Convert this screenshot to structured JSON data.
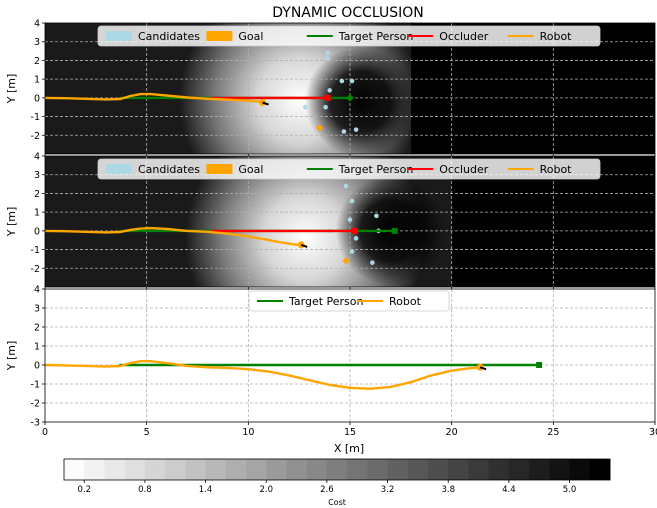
{
  "figure": {
    "title": "DYNAMIC OCCLUSION",
    "xlabel": "X [m]",
    "ylabel": "Y [m]"
  },
  "colorbar": {
    "label": "Cost",
    "ticks": [
      0.2,
      0.8,
      1.4,
      2.0,
      2.6,
      3.2,
      3.8,
      4.4,
      5.0
    ],
    "tick_labels": [
      "0.2",
      "0.8",
      "1.4",
      "2.0",
      "2.6",
      "3.2",
      "3.8",
      "4.4",
      "5.0"
    ],
    "range": [
      0,
      5.4
    ]
  },
  "colors": {
    "candidates": "#add8e6",
    "goal": "#ffa500",
    "target": "#008000",
    "occluder": "#ff0000",
    "robot": "#ffa500"
  },
  "chart_data": [
    {
      "type": "line",
      "panel": "top",
      "xlim": [
        0,
        30
      ],
      "ylim": [
        -3,
        4
      ],
      "yticks": [
        -2,
        -1,
        0,
        1,
        2,
        3,
        4
      ],
      "grid": true,
      "legend": {
        "placement": "top",
        "entries": [
          {
            "label": "Candidates",
            "kind": "patch",
            "color": "#add8e6"
          },
          {
            "label": "Goal",
            "kind": "patch",
            "color": "#ffa500"
          },
          {
            "label": "Target Person",
            "kind": "line",
            "color": "#008000"
          },
          {
            "label": "Occluder",
            "kind": "line",
            "color": "#ff0000"
          },
          {
            "label": "Robot",
            "kind": "line",
            "color": "#ffa500"
          }
        ]
      },
      "cost_map": {
        "low_center": [
          12.5,
          -0.1
        ],
        "high_center": [
          15.5,
          -0.2
        ],
        "dark_from_x": 18
      },
      "series": [
        {
          "name": "Target Person",
          "color": "#008000",
          "x": [
            3.7,
            15.0
          ],
          "y": [
            0.0,
            0.0
          ],
          "end_marker": "diamond"
        },
        {
          "name": "Occluder",
          "color": "#ff0000",
          "x": [
            8.2,
            13.9
          ],
          "y": [
            0.0,
            0.0
          ],
          "end_marker": "square"
        },
        {
          "name": "Robot",
          "color": "#ffa500",
          "x": [
            0,
            1,
            2,
            3,
            3.7,
            4.2,
            4.7,
            5.2,
            6,
            7,
            8,
            9,
            10,
            10.5,
            10.7
          ],
          "y": [
            0,
            -0.02,
            -0.05,
            -0.08,
            -0.06,
            0.1,
            0.2,
            0.2,
            0.12,
            0.02,
            -0.05,
            -0.1,
            -0.15,
            -0.2,
            -0.25
          ]
        }
      ],
      "goal": {
        "x": 13.5,
        "y": -1.6
      },
      "candidates": {
        "x": [
          13.9,
          13.9,
          14.6,
          15.1,
          14.0,
          12.8,
          13.8,
          14.7,
          15.3
        ],
        "y": [
          2.4,
          2.1,
          0.9,
          0.9,
          0.4,
          -0.5,
          -0.5,
          -1.8,
          -1.7
        ]
      }
    },
    {
      "type": "line",
      "panel": "middle",
      "xlim": [
        0,
        30
      ],
      "ylim": [
        -3,
        4
      ],
      "yticks": [
        -2,
        -1,
        0,
        1,
        2,
        3,
        4
      ],
      "grid": true,
      "legend": {
        "placement": "top",
        "entries": [
          {
            "label": "Candidates",
            "kind": "patch",
            "color": "#add8e6"
          },
          {
            "label": "Goal",
            "kind": "patch",
            "color": "#ffa500"
          },
          {
            "label": "Target Person",
            "kind": "line",
            "color": "#008000"
          },
          {
            "label": "Occluder",
            "kind": "line",
            "color": "#ff0000"
          },
          {
            "label": "Robot",
            "kind": "line",
            "color": "#ffa500"
          }
        ]
      },
      "cost_map": {
        "low_center": [
          12.8,
          -0.4
        ],
        "high_center": [
          17.0,
          0.0
        ],
        "dark_from_x": 20
      },
      "series": [
        {
          "name": "Target Person",
          "color": "#008000",
          "x": [
            3.7,
            17.2
          ],
          "y": [
            0.0,
            0.0
          ],
          "end_marker": "square"
        },
        {
          "name": "Occluder",
          "color": "#ff0000",
          "x": [
            8.2,
            15.2
          ],
          "y": [
            0.0,
            0.0
          ],
          "end_marker": "square"
        },
        {
          "name": "Robot",
          "color": "#ffa500",
          "x": [
            0,
            1,
            2,
            3,
            3.7,
            4.2,
            4.7,
            5.2,
            6,
            7,
            8,
            9,
            10,
            10.8,
            11.5,
            12.2,
            12.6
          ],
          "y": [
            0,
            -0.02,
            -0.05,
            -0.08,
            -0.06,
            0.05,
            0.12,
            0.15,
            0.1,
            0.0,
            -0.05,
            -0.15,
            -0.3,
            -0.45,
            -0.6,
            -0.72,
            -0.75
          ]
        }
      ],
      "goal": {
        "x": 14.8,
        "y": -1.6
      },
      "candidates": {
        "x": [
          14.8,
          15.1,
          16.3,
          15.0,
          16.4,
          14.0,
          15.3,
          15.1,
          16.1
        ],
        "y": [
          2.4,
          1.6,
          0.8,
          0.6,
          0.0,
          0.0,
          -0.4,
          -1.1,
          -1.7
        ]
      }
    },
    {
      "type": "line",
      "panel": "bottom",
      "xlim": [
        0,
        30
      ],
      "ylim": [
        -3,
        4
      ],
      "xticks": [
        0,
        5,
        10,
        15,
        20,
        25,
        30
      ],
      "yticks": [
        -3,
        -2,
        -1,
        0,
        1,
        2,
        3,
        4
      ],
      "grid": true,
      "legend": {
        "placement": "top",
        "entries": [
          {
            "label": "Target Person",
            "kind": "line",
            "color": "#008000"
          },
          {
            "label": "Robot",
            "kind": "line",
            "color": "#ffa500"
          }
        ]
      },
      "series": [
        {
          "name": "Target Person",
          "color": "#008000",
          "x": [
            3.7,
            24.3
          ],
          "y": [
            0.0,
            0.0
          ],
          "end_marker": "square"
        },
        {
          "name": "Robot",
          "color": "#ffa500",
          "x": [
            0,
            1,
            2,
            3,
            3.7,
            4.2,
            4.7,
            5.2,
            6,
            7,
            8,
            9,
            10,
            11,
            12,
            13,
            14,
            15,
            16,
            17,
            18,
            19,
            20,
            20.8,
            21.4
          ],
          "y": [
            0,
            -0.02,
            -0.05,
            -0.08,
            -0.06,
            0.1,
            0.2,
            0.2,
            0.1,
            -0.05,
            -0.12,
            -0.15,
            -0.22,
            -0.35,
            -0.55,
            -0.8,
            -1.05,
            -1.2,
            -1.25,
            -1.15,
            -0.9,
            -0.55,
            -0.3,
            -0.18,
            -0.12
          ]
        }
      ]
    }
  ]
}
